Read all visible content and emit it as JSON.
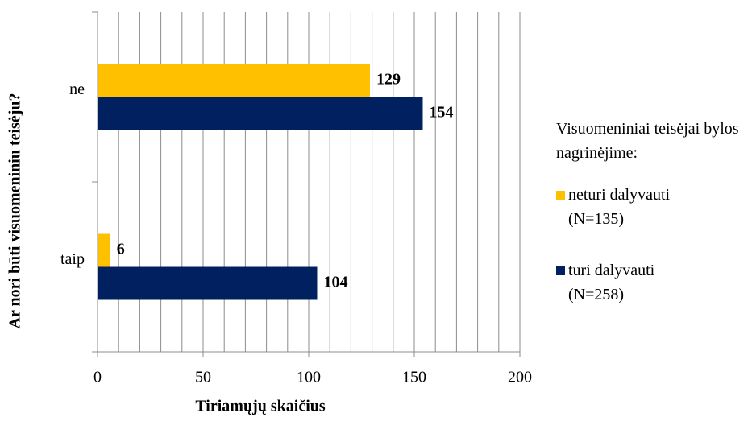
{
  "chart_data": {
    "type": "hbar",
    "x_label": "Tiriamųjų skaičius",
    "y_label": "Ar nori būti visuomeniniu teisėju?",
    "legend_title": "Visuomeniniai teisėjai bylos nagrinėjime:",
    "categories": [
      "ne",
      "taip"
    ],
    "series": [
      {
        "name": "neturi dalyvauti (N=135)",
        "color": "#ffc000",
        "values": [
          129,
          6
        ]
      },
      {
        "name": "turi dalyvauti (N=258)",
        "color": "#002060",
        "values": [
          154,
          104
        ]
      }
    ],
    "xlim": [
      0,
      200
    ],
    "xticks": [
      0,
      50,
      100,
      150,
      200
    ],
    "grid_lines": [
      10,
      20,
      30,
      40,
      50,
      60,
      70,
      80,
      90,
      100,
      110,
      120,
      130,
      140,
      150,
      160,
      170,
      180,
      190,
      200
    ],
    "legend": "right"
  }
}
